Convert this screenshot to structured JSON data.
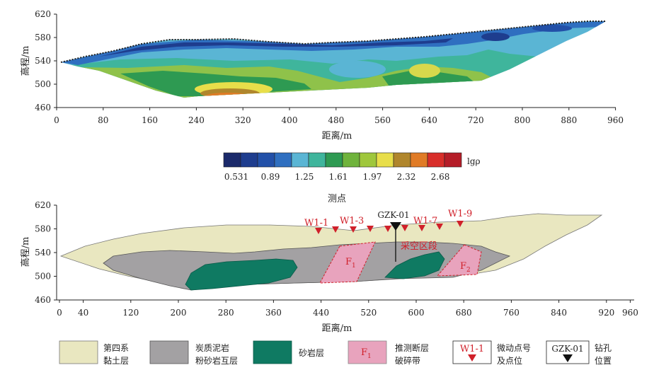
{
  "top_panel": {
    "ylabel": "高程/m",
    "xlabel": "距离/m",
    "y_ticks": [
      "620",
      "580",
      "540",
      "500",
      "460"
    ],
    "x_ticks": [
      "0",
      "80",
      "160",
      "240",
      "320",
      "400",
      "480",
      "560",
      "640",
      "720",
      "800",
      "880",
      "960"
    ],
    "colorbar": {
      "symbol": "lgρ",
      "tick_labels": [
        "0.531",
        "0.89",
        "1.25",
        "1.61",
        "1.97",
        "2.32",
        "2.68"
      ],
      "colors": [
        "#1b2a6b",
        "#1e3d8e",
        "#2250a8",
        "#2f6fc0",
        "#5ab5d4",
        "#3fb59c",
        "#2e9a52",
        "#6fb33c",
        "#9fc73c",
        "#e8de4a",
        "#b0862c",
        "#e07b26",
        "#d82e2a",
        "#b51d28"
      ]
    }
  },
  "bottom_panel": {
    "title": "测点",
    "ylabel": "高程/m",
    "xlabel": "距离/m",
    "y_ticks": [
      "620",
      "580",
      "540",
      "500",
      "460"
    ],
    "x_ticks": [
      "0",
      "40",
      "120",
      "200",
      "280",
      "360",
      "440",
      "520",
      "600",
      "680",
      "760",
      "840",
      "920",
      "960"
    ],
    "labels": {
      "w1_1": "W1-1",
      "w1_3": "W1-3",
      "w1_7": "W1-7",
      "w1_9": "W1-9",
      "borehole": "GZK-01",
      "goaf": "采空区段",
      "f1": "F",
      "f1_sub": "1",
      "f2": "F",
      "f2_sub": "2"
    }
  },
  "legend": {
    "quaternary_l1": "第四系",
    "quaternary_l2": "黏土层",
    "mudstone_l1": "炭质泥岩",
    "mudstone_l2": "粉砂岩互层",
    "sandstone": "砂岩层",
    "fault_symbol": "F",
    "fault_sub": "1",
    "fault_l1": "推测断层",
    "fault_l2": "破碎带",
    "station_symbol": "W1-1",
    "station_l1": "微动点号",
    "station_l2": "及点位",
    "borehole_symbol": "GZK-01",
    "borehole_l1": "钻孔",
    "borehole_l2": "位置"
  },
  "colors": {
    "clay": "#e9e7c0",
    "mudstone": "#a3a1a3",
    "sandstone": "#0f7a62",
    "fault": "#e8a3bd",
    "fault_edge": "#d0202a",
    "marker": "#d0202a"
  }
}
